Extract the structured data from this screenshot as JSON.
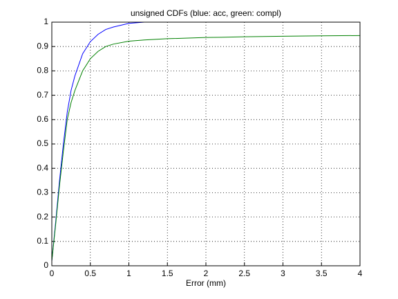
{
  "chart_data": {
    "type": "line",
    "title": "unsigned CDFs (blue: acc, green: compl)",
    "x_label": "Error (mm)",
    "x": [
      0,
      0.05,
      0.1,
      0.15,
      0.2,
      0.25,
      0.3,
      0.4,
      0.5,
      0.6,
      0.7,
      0.8,
      1,
      1.2,
      1.5,
      2,
      2.2,
      2.5,
      3,
      3.5,
      4
    ],
    "series": [
      {
        "color": "#0000ff",
        "values": [
          0.02,
          0.18,
          0.35,
          0.5,
          0.63,
          0.72,
          0.78,
          0.87,
          0.92,
          0.95,
          0.97,
          0.98,
          0.995,
          1,
          1,
          1,
          1,
          null,
          null,
          null,
          null
        ]
      },
      {
        "color": "#008000",
        "values": [
          0.02,
          0.17,
          0.33,
          0.47,
          0.6,
          0.67,
          0.72,
          0.8,
          0.85,
          0.88,
          0.9,
          0.91,
          0.922,
          0.927,
          0.932,
          0.937,
          0.938,
          0.94,
          0.942,
          0.944,
          0.945
        ]
      }
    ],
    "xlim": [
      0,
      4
    ],
    "xticks": [
      0,
      0.5,
      1,
      1.5,
      2,
      2.5,
      3,
      3.5,
      4
    ],
    "ylim": [
      0,
      1
    ],
    "yticks": [
      0,
      0.1,
      0.2,
      0.3,
      0.4,
      0.5,
      0.6,
      0.7,
      0.8,
      0.9,
      1
    ],
    "grid": true
  }
}
